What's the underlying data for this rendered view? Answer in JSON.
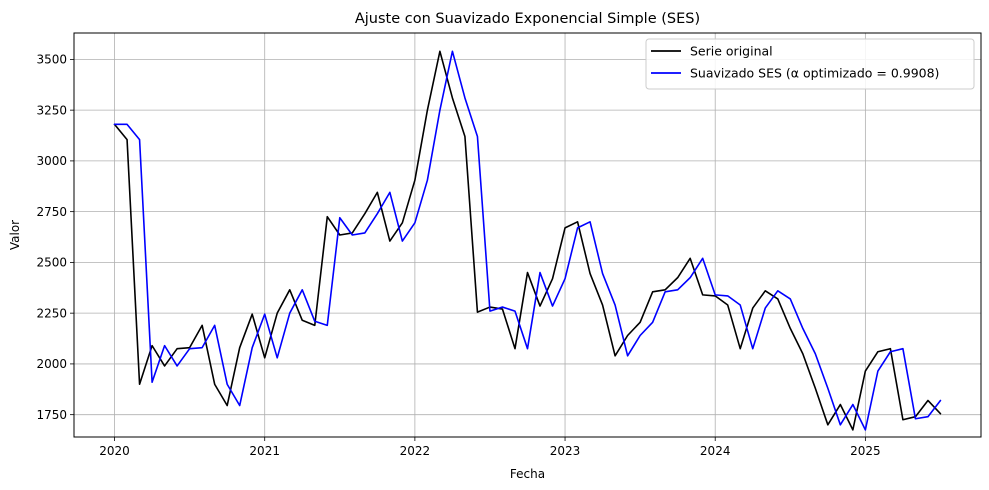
{
  "chart_data": {
    "type": "line",
    "title": "Ajuste con Suavizado Exponencial Simple (SES)",
    "xlabel": "Fecha",
    "ylabel": "Valor",
    "x_start": "2020-01",
    "x_ticks": [
      "2020",
      "2021",
      "2022",
      "2023",
      "2024",
      "2025"
    ],
    "y_ticks": [
      1750,
      2000,
      2250,
      2500,
      2750,
      3000,
      3250,
      3500
    ],
    "xlim": [
      2019.73,
      2025.77
    ],
    "ylim": [
      1640,
      3630
    ],
    "grid": true,
    "legend_position": "top-right",
    "series": [
      {
        "name": "Serie original",
        "color": "#000000",
        "values": [
          3180,
          3105,
          1900,
          2090,
          1990,
          2075,
          2080,
          2190,
          1900,
          1795,
          2080,
          2245,
          2030,
          2250,
          2365,
          2215,
          2190,
          2725,
          2635,
          2645,
          2740,
          2845,
          2605,
          2695,
          2905,
          3250,
          3540,
          3310,
          3120,
          2255,
          2280,
          2270,
          2075,
          2450,
          2285,
          2420,
          2670,
          2700,
          2445,
          2290,
          2040,
          2140,
          2205,
          2355,
          2365,
          2425,
          2520,
          2340,
          2335,
          2290,
          2075,
          2275,
          2360,
          2320,
          2175,
          2050,
          1880,
          1700,
          1800,
          1675,
          1965,
          2060,
          2075,
          1725,
          1740,
          1820,
          1755
        ]
      },
      {
        "name": "Suavizado SES (α optimizado = 0.9908)",
        "color": "#0000ff",
        "values": [
          3180,
          3180,
          3105,
          1910,
          2090,
          1990,
          2075,
          2080,
          2190,
          1900,
          1795,
          2080,
          2245,
          2030,
          2250,
          2365,
          2210,
          2190,
          2720,
          2635,
          2645,
          2740,
          2845,
          2605,
          2695,
          2905,
          3250,
          3540,
          3310,
          3120,
          2260,
          2280,
          2260,
          2075,
          2450,
          2285,
          2420,
          2670,
          2700,
          2445,
          2290,
          2040,
          2140,
          2205,
          2355,
          2365,
          2425,
          2520,
          2340,
          2335,
          2290,
          2075,
          2275,
          2360,
          2320,
          2175,
          2050,
          1880,
          1700,
          1800,
          1675,
          1965,
          2060,
          2075,
          1730,
          1740,
          1820
        ]
      }
    ]
  }
}
